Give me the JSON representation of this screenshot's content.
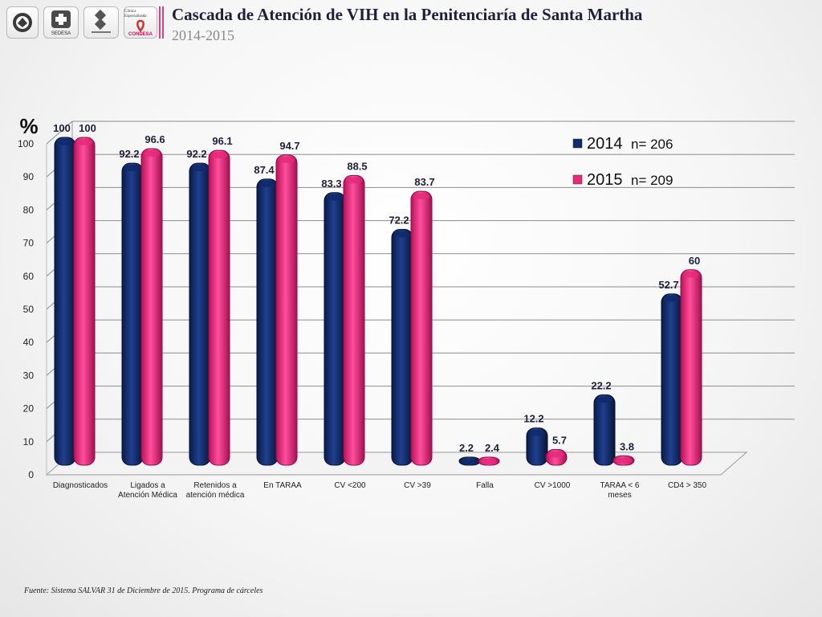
{
  "header": {
    "title": "Cascada de Atención de VIH en la Penitenciaría de Santa Martha",
    "subtitle": "2014-2015",
    "logos": [
      {
        "icon": "government-seal-icon"
      },
      {
        "icon": "sedesa-logo-icon",
        "caption": "SEDESA"
      },
      {
        "icon": "health-services-logo-icon"
      },
      {
        "icon": "condesa-logo-icon",
        "caption": "Clínica Especializada",
        "brand": "CONDESA"
      }
    ]
  },
  "colors": {
    "series_2014": "#0f2a6b",
    "series_2015": "#e8297a",
    "accent": "#d8408a"
  },
  "chart_data": {
    "type": "bar",
    "title": "",
    "ylabel": "%",
    "xlabel": "",
    "ylim": [
      0,
      100
    ],
    "yticks": [
      0,
      10,
      20,
      30,
      40,
      50,
      60,
      70,
      80,
      90,
      100
    ],
    "grid": true,
    "legend_position": "top-right",
    "categories": [
      [
        "Diagnosticados"
      ],
      [
        "Ligados a",
        "Atención Médica"
      ],
      [
        "Retenidos a",
        "atención médica"
      ],
      [
        "En TARAA"
      ],
      [
        "CV <200"
      ],
      [
        "CV >39"
      ],
      [
        "Falla"
      ],
      [
        "CV >1000"
      ],
      [
        "TARAA < 6",
        "meses"
      ],
      [
        "CD4 > 350"
      ]
    ],
    "series": [
      {
        "name": "2014",
        "n_label": "n= 206",
        "values": [
          100,
          92.2,
          92.2,
          87.4,
          83.3,
          72.2,
          2.2,
          12.2,
          22.2,
          52.7
        ]
      },
      {
        "name": "2015",
        "n_label": "n= 209",
        "values": [
          100,
          96.6,
          96.1,
          94.7,
          88.5,
          83.7,
          2.4,
          5.7,
          3.8,
          60
        ]
      }
    ]
  },
  "footer": {
    "source": "Fuente: Sistema SALVAR 31 de Diciembre de 2015. Programa de cárceles"
  }
}
